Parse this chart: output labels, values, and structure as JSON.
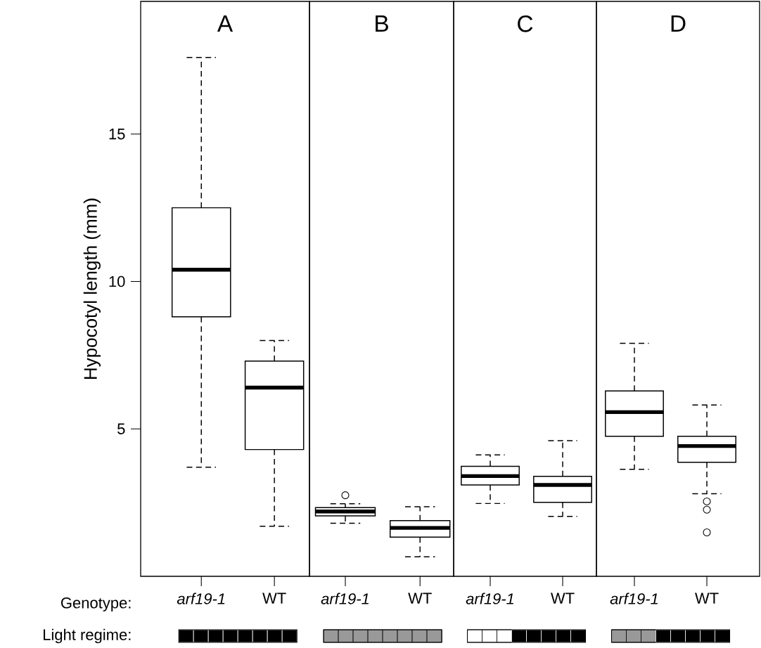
{
  "chart_data": [
    {
      "type": "box",
      "title": "A",
      "ylabel": "Hypocotyl length (mm)",
      "categories": [
        "arf19-1",
        "WT"
      ],
      "ylim": [
        0,
        19.5
      ],
      "yticks": [
        5,
        10,
        15
      ],
      "marker": "circle",
      "annotations": [
        "Genotype:",
        "Light regime:"
      ],
      "boxes": [
        {
          "low": 3.7,
          "q1": 8.8,
          "median": 10.4,
          "q3": 12.5,
          "high": 17.6
        },
        {
          "low": 1.7,
          "q1": 4.3,
          "median": 6.4,
          "q3": 7.3,
          "high": 8.0
        }
      ]
    },
    {
      "type": "box",
      "title": "B",
      "categories": [
        "arf19-1",
        "WT"
      ],
      "ylim": [
        0,
        19.5
      ],
      "tick_labels": "x",
      "marker": "circle",
      "boxes": [
        {
          "low": 1.8,
          "q1": 2.05,
          "median": 2.2,
          "q3": 2.33,
          "high": 2.46,
          "outliers": [
            2.75
          ]
        },
        {
          "low": 0.66,
          "q1": 1.33,
          "median": 1.64,
          "q3": 1.89,
          "high": 2.36
        }
      ]
    },
    {
      "type": "box",
      "title": "C",
      "categories": [
        "arf19-1",
        "WT"
      ],
      "ylim": [
        0,
        19.5
      ],
      "tick_labels": "x",
      "marker": "circle",
      "boxes": [
        {
          "low": 2.47,
          "q1": 3.1,
          "median": 3.4,
          "q3": 3.73,
          "high": 4.12
        },
        {
          "low": 2.03,
          "q1": 2.51,
          "median": 3.1,
          "q3": 3.39,
          "high": 4.6
        }
      ]
    },
    {
      "type": "box",
      "title": "D",
      "categories": [
        "arf19-1",
        "WT"
      ],
      "ylim": [
        0,
        19.5
      ],
      "tick_labels": "x",
      "marker": "circle",
      "boxes": [
        {
          "low": 3.63,
          "q1": 4.75,
          "median": 5.57,
          "q3": 6.29,
          "high": 7.9
        },
        {
          "low": 2.8,
          "q1": 3.87,
          "median": 4.42,
          "q3": 4.75,
          "high": 5.81,
          "outliers": [
            2.54,
            2.26,
            1.49
          ]
        }
      ]
    }
  ]
}
